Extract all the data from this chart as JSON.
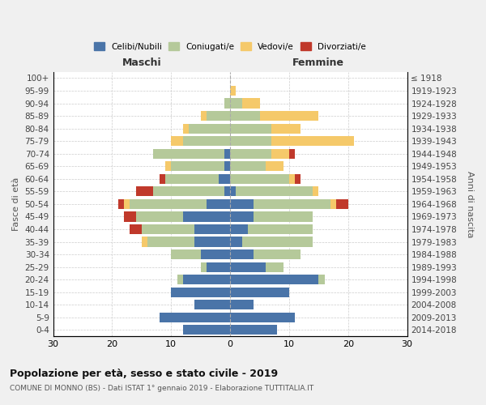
{
  "age_groups": [
    "0-4",
    "5-9",
    "10-14",
    "15-19",
    "20-24",
    "25-29",
    "30-34",
    "35-39",
    "40-44",
    "45-49",
    "50-54",
    "55-59",
    "60-64",
    "65-69",
    "70-74",
    "75-79",
    "80-84",
    "85-89",
    "90-94",
    "95-99",
    "100+"
  ],
  "birth_years": [
    "2014-2018",
    "2009-2013",
    "2004-2008",
    "1999-2003",
    "1994-1998",
    "1989-1993",
    "1984-1988",
    "1979-1983",
    "1974-1978",
    "1969-1973",
    "1964-1968",
    "1959-1963",
    "1954-1958",
    "1949-1953",
    "1944-1948",
    "1939-1943",
    "1934-1938",
    "1929-1933",
    "1924-1928",
    "1919-1923",
    "≤ 1918"
  ],
  "male": {
    "celibi": [
      8,
      12,
      6,
      10,
      8,
      4,
      5,
      6,
      6,
      8,
      4,
      1,
      2,
      1,
      1,
      0,
      0,
      0,
      0,
      0,
      0
    ],
    "coniugati": [
      0,
      0,
      0,
      0,
      1,
      1,
      5,
      8,
      9,
      8,
      13,
      12,
      9,
      9,
      12,
      8,
      7,
      4,
      1,
      0,
      0
    ],
    "vedovi": [
      0,
      0,
      0,
      0,
      0,
      0,
      0,
      1,
      0,
      0,
      1,
      0,
      0,
      1,
      0,
      2,
      1,
      1,
      0,
      0,
      0
    ],
    "divorziati": [
      0,
      0,
      0,
      0,
      0,
      0,
      0,
      0,
      2,
      2,
      1,
      3,
      1,
      0,
      0,
      0,
      0,
      0,
      0,
      0,
      0
    ]
  },
  "female": {
    "nubili": [
      8,
      11,
      4,
      10,
      15,
      6,
      4,
      2,
      3,
      4,
      4,
      1,
      0,
      0,
      0,
      0,
      0,
      0,
      0,
      0,
      0
    ],
    "coniugate": [
      0,
      0,
      0,
      0,
      1,
      3,
      8,
      12,
      11,
      10,
      13,
      13,
      10,
      6,
      7,
      7,
      7,
      5,
      2,
      0,
      0
    ],
    "vedove": [
      0,
      0,
      0,
      0,
      0,
      0,
      0,
      0,
      0,
      0,
      1,
      1,
      1,
      3,
      3,
      14,
      5,
      10,
      3,
      1,
      0
    ],
    "divorziate": [
      0,
      0,
      0,
      0,
      0,
      0,
      0,
      0,
      0,
      0,
      2,
      0,
      1,
      0,
      1,
      0,
      0,
      0,
      0,
      0,
      0
    ]
  },
  "colors": {
    "celibi_nubili": "#4a74a8",
    "coniugati": "#b5c99a",
    "vedovi": "#f5c96a",
    "divorziati": "#c0392b"
  },
  "xlim": 30,
  "title": "Popolazione per età, sesso e stato civile - 2019",
  "subtitle": "COMUNE DI MONNO (BS) - Dati ISTAT 1° gennaio 2019 - Elaborazione TUTTITALIA.IT",
  "ylabel_left": "Fasce di età",
  "ylabel_right": "Anni di nascita",
  "xlabel_left": "Maschi",
  "xlabel_right": "Femmine",
  "bg_color": "#f0f0f0",
  "plot_bg": "#ffffff"
}
